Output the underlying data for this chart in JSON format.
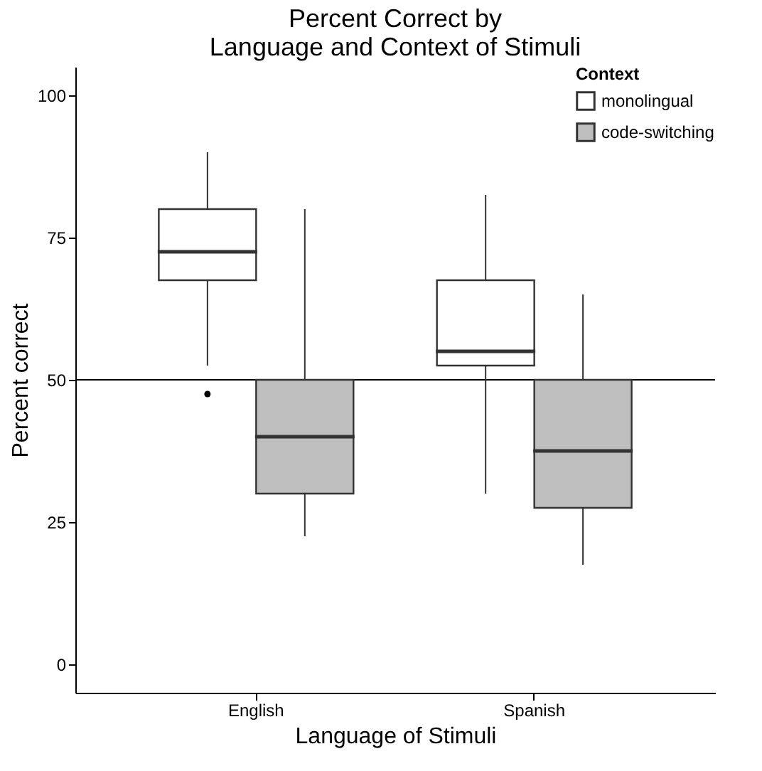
{
  "chart_data": {
    "type": "box",
    "title": "Percent Correct by\nLanguage and Context of Stimuli",
    "xlabel": "Language of Stimuli",
    "ylabel": "Percent correct",
    "legend_title": "Context",
    "categories": [
      "English",
      "Spanish"
    ],
    "series": [
      {
        "name": "monolingual",
        "color": "#ffffff",
        "boxes": [
          {
            "low": 52.5,
            "q1": 67.5,
            "median": 72.5,
            "q3": 80,
            "high": 90,
            "outliers": [
              47.5
            ]
          },
          {
            "low": 30,
            "q1": 52.5,
            "median": 55,
            "q3": 67.5,
            "high": 82.5
          }
        ]
      },
      {
        "name": "code-switching",
        "color": "#bebebe",
        "boxes": [
          {
            "low": 22.5,
            "q1": 30,
            "median": 40,
            "q3": 50,
            "high": 80
          },
          {
            "low": 17.5,
            "q1": 27.5,
            "median": 37.5,
            "q3": 50,
            "high": 65
          }
        ]
      }
    ],
    "ylim": [
      -5,
      105
    ],
    "yticks": [
      0,
      25,
      50,
      75,
      100
    ],
    "ref_lines": [
      {
        "axis": "y",
        "value": 50
      }
    ],
    "grid": false,
    "legend": "top right"
  }
}
